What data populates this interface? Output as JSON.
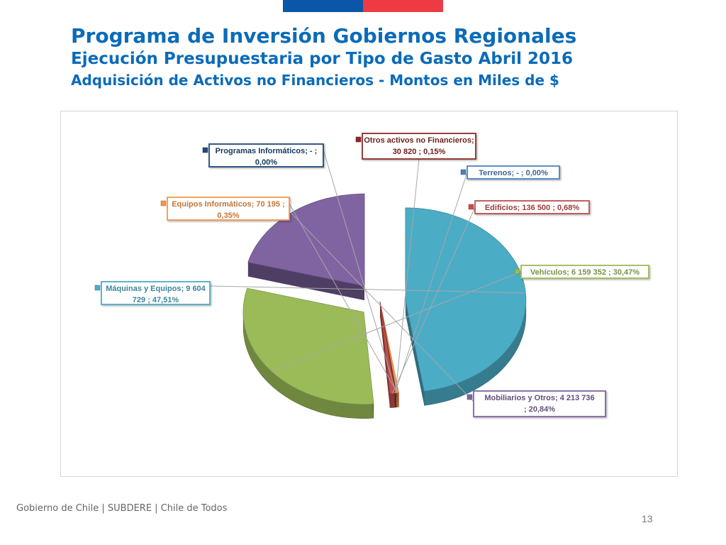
{
  "slide": {
    "title": "Programa de Inversión Gobiernos Regionales",
    "subtitle": "Ejecución Presupuestaria por Tipo de Gasto Abril 2016",
    "subtitle2": "Adquisición de Activos no Financieros - Montos en Miles de $",
    "footer": "Gobierno de Chile | SUBDERE | Chile de Todos",
    "page_number": "13"
  },
  "chart_data": {
    "type": "pie",
    "slices": [
      {
        "label": "Máquinas y Equipos",
        "value": 9604729,
        "percent": 47.51,
        "text1": "Máquinas y Equipos;  9 604",
        "text2": "729 ; 47,51%",
        "color": "#4bacc6"
      },
      {
        "label": "Equipos Informáticos",
        "value": 70195,
        "percent": 0.35,
        "text1": "Equipos Informáticos;  70 195 ;",
        "text2": "0,35%",
        "color": "#f79646"
      },
      {
        "label": "Programas Informáticos",
        "value": 0,
        "percent": 0.0,
        "text1": "Programas Informáticos;  -   ;",
        "text2": "0,00%",
        "color": "#1f497d"
      },
      {
        "label": "Otros activos no Financieros",
        "value": 30820,
        "percent": 0.15,
        "text1": "Otros activos no Financieros;",
        "text2": "30 820 ; 0,15%",
        "color": "#8b2a26"
      },
      {
        "label": "Terrenos",
        "value": 0,
        "percent": 0.0,
        "text1": "Terrenos;  -   ; 0,00%",
        "text2": "",
        "color": "#4f81bd"
      },
      {
        "label": "Edificios",
        "value": 136500,
        "percent": 0.68,
        "text1": "Edificios;  136 500 ; 0,68%",
        "text2": "",
        "color": "#c0504d"
      },
      {
        "label": "Vehículos",
        "value": 6159352,
        "percent": 30.47,
        "text1": "Vehículos;  6 159 352 ; 30,47%",
        "text2": "",
        "color": "#9bbb59"
      },
      {
        "label": "Mobiliarios y Otros",
        "value": 4213736,
        "percent": 20.84,
        "text1": "Mobiliarios y Otros;  4 213 736",
        "text2": "; 20,84%",
        "color": "#8064a2"
      }
    ]
  }
}
